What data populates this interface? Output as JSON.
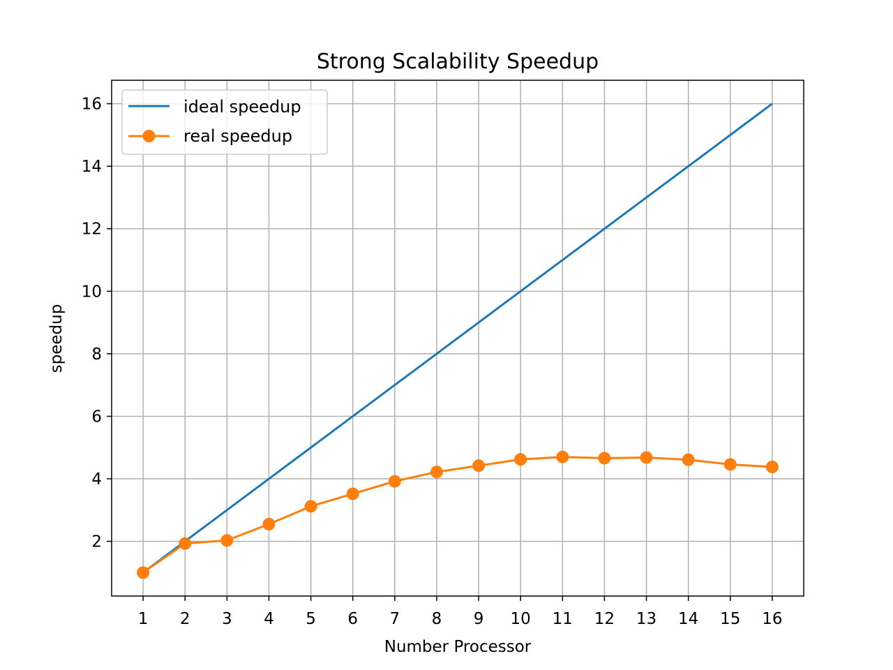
{
  "chart_data": {
    "type": "line",
    "title": "Strong Scalability Speedup",
    "xlabel": "Number Processor",
    "ylabel": "speedup",
    "x": [
      1,
      2,
      3,
      4,
      5,
      6,
      7,
      8,
      9,
      10,
      11,
      12,
      13,
      14,
      15,
      16
    ],
    "xlim": [
      0.25,
      16.75
    ],
    "ylim": [
      0.25,
      16.75
    ],
    "xticks": [
      1,
      2,
      3,
      4,
      5,
      6,
      7,
      8,
      9,
      10,
      11,
      12,
      13,
      14,
      15,
      16
    ],
    "yticks": [
      2,
      4,
      6,
      8,
      10,
      12,
      14,
      16
    ],
    "grid": true,
    "legend_position": "top-left",
    "series": [
      {
        "name": "ideal speedup",
        "color": "#1f77b4",
        "marker": "none",
        "values": [
          1,
          2,
          3,
          4,
          5,
          6,
          7,
          8,
          9,
          10,
          11,
          12,
          13,
          14,
          15,
          16
        ]
      },
      {
        "name": "real speedup",
        "color": "#ff7f0e",
        "marker": "circle",
        "values": [
          1.0,
          1.93,
          2.03,
          2.55,
          3.12,
          3.52,
          3.92,
          4.22,
          4.42,
          4.62,
          4.7,
          4.66,
          4.68,
          4.61,
          4.46,
          4.38
        ]
      }
    ]
  }
}
